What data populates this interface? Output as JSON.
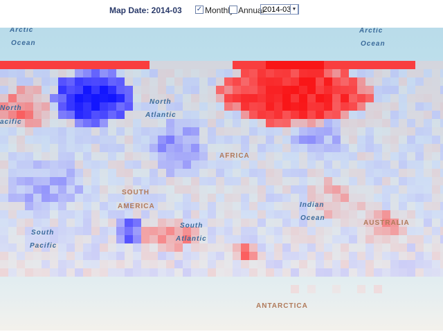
{
  "header": {
    "title": "Map Date: 2014-03",
    "monthly_label": "Monthly",
    "monthly_checked": true,
    "annual_label": "Annual",
    "annual_checked": false,
    "date_select": "2014-03"
  },
  "map": {
    "labels": {
      "arctic_left_1": "Arctic",
      "arctic_left_2": "Ocean",
      "arctic_right_1": "Arctic",
      "arctic_right_2": "Ocean",
      "north_pacific_1": "North",
      "north_pacific_2": "acific",
      "north_atlantic_1": "North",
      "north_atlantic_2": "Atlantic",
      "africa": "AFRICA",
      "south_america_1": "SOUTH",
      "south_america_2": "AMERICA",
      "indian_1": "Indian",
      "indian_2": "Ocean",
      "australia": "AUSTRALIA",
      "south_atlantic_1": "South",
      "south_atlantic_2": "Atlantic",
      "south_pacific_1": "South",
      "south_pacific_2": "Pacific",
      "antarctica": "ANTARCTICA"
    },
    "colors": {
      "warm": "#ff0000",
      "cold": "#4400dd",
      "neutral": "#ffffff"
    }
  }
}
